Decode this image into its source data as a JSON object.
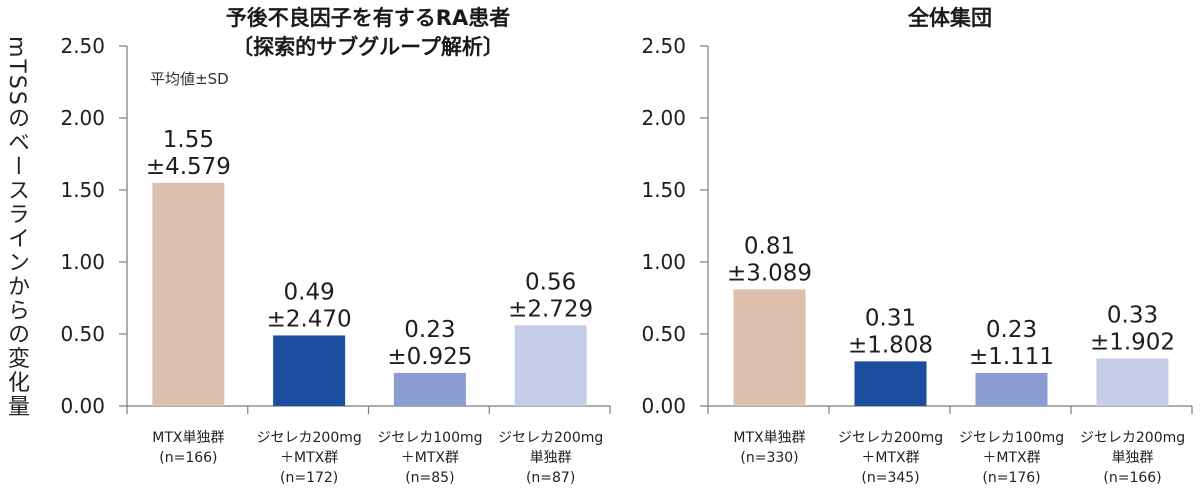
{
  "chart_data": [
    {
      "type": "bar",
      "title": "予後不良因子を有するRA患者",
      "subtitle": "〔探索的サブグループ解析〕",
      "ylabel": "mTSSのベースラインからの変化量",
      "annotations": [
        "平均値±SD"
      ],
      "categories": [
        "MTX単独群",
        "ジセレカ200mg\n＋MTX群",
        "ジセレカ100mg\n＋MTX群",
        "ジセレカ200mg\n単独群"
      ],
      "n_labels": [
        "(n=166)",
        "(n=172)",
        "(n=85)",
        "(n=87)"
      ],
      "values": [
        1.55,
        0.49,
        0.23,
        0.56
      ],
      "sd_labels": [
        "±4.579",
        "±2.470",
        "±0.925",
        "±2.729"
      ],
      "colors": [
        "#dcbfae",
        "#1b4e9e",
        "#8b9dd2",
        "#c5cde8"
      ],
      "ylim": [
        0,
        2.5
      ],
      "yticks": [
        "0.00",
        "0.50",
        "1.00",
        "1.50",
        "2.00",
        "2.50"
      ],
      "grid": false
    },
    {
      "type": "bar",
      "title": "全体集団",
      "categories": [
        "MTX単独群",
        "ジセレカ200mg\n＋MTX群",
        "ジセレカ100mg\n＋MTX群",
        "ジセレカ200mg\n単独群"
      ],
      "n_labels": [
        "(n=330)",
        "(n=345)",
        "(n=176)",
        "(n=166)"
      ],
      "values": [
        0.81,
        0.31,
        0.23,
        0.33
      ],
      "sd_labels": [
        "±3.089",
        "±1.808",
        "±1.111",
        "±1.902"
      ],
      "colors": [
        "#dcbfae",
        "#1b4e9e",
        "#8b9dd2",
        "#c5cde8"
      ],
      "ylim": [
        0,
        2.5
      ],
      "yticks": [
        "0.00",
        "0.50",
        "1.00",
        "1.50",
        "2.00",
        "2.50"
      ],
      "grid": false
    }
  ]
}
